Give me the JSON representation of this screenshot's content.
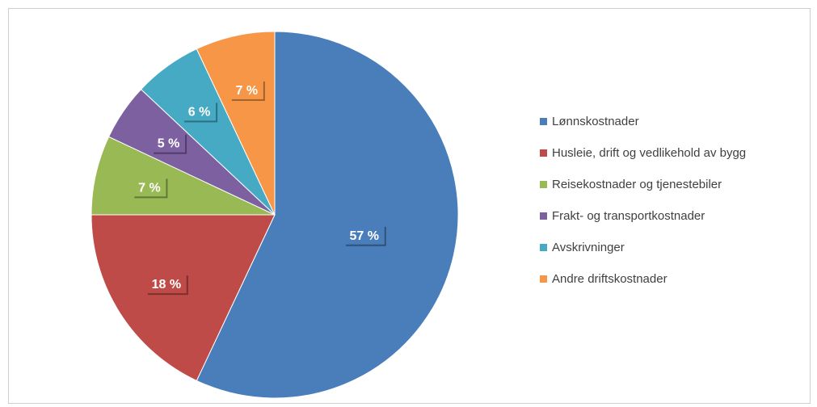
{
  "chart_data": {
    "type": "pie",
    "categories": [
      "Lønnskostnader",
      "Husleie, drift og vedlikehold av bygg",
      "Reisekostnader og tjenestebiler",
      "Frakt- og transportkostnader",
      "Avskrivninger",
      "Andre driftskostnader"
    ],
    "values": [
      57,
      18,
      7,
      5,
      6,
      7
    ],
    "data_labels": [
      "57 %",
      "18 %",
      "7 %",
      "5 %",
      "6 %",
      "7 %"
    ],
    "colors": [
      "#4a7ebb",
      "#be4b48",
      "#98b954",
      "#7d60a0",
      "#46aac4",
      "#f79646"
    ],
    "legend_position": "right",
    "start": "top, clockwise"
  }
}
